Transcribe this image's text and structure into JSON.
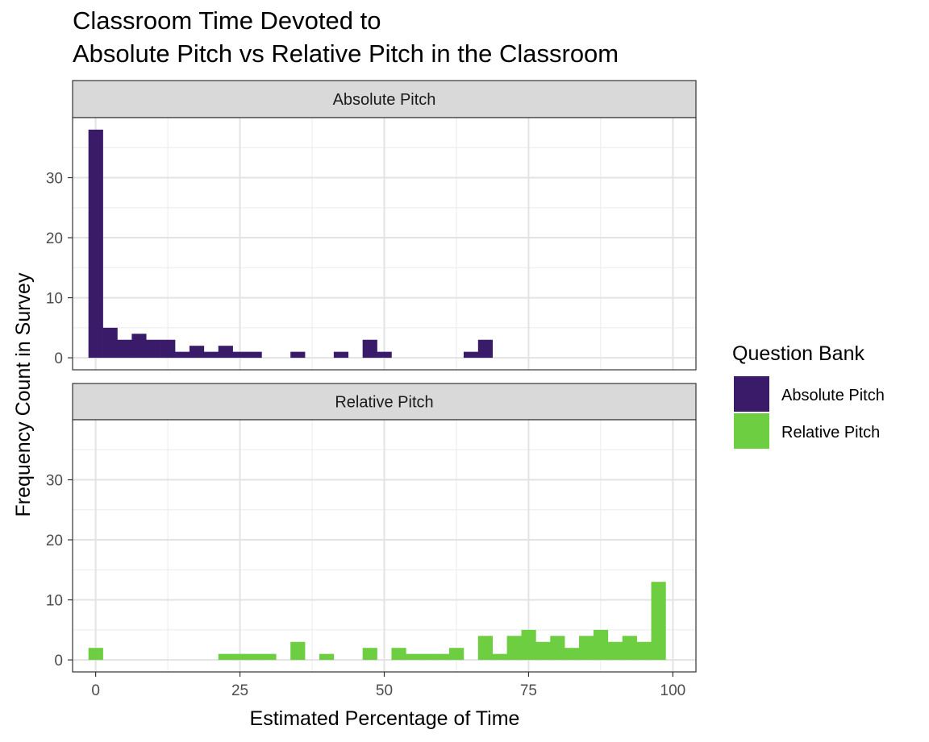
{
  "chart_data": {
    "type": "bar",
    "title_line1": "Classroom Time Devoted to",
    "title_line2": "Absolute Pitch vs Relative Pitch in the Classroom",
    "xlabel": "Estimated Percentage of Time",
    "ylabel": "Frequency Count in Survey",
    "xlim": [
      -4,
      104
    ],
    "ylim": [
      -2,
      40
    ],
    "x_ticks": [
      0,
      25,
      50,
      75,
      100
    ],
    "y_ticks": [
      0,
      10,
      20,
      30
    ],
    "grid": true,
    "bin_width": 2.5,
    "legend": {
      "title": "Question Bank",
      "placement": "right",
      "items": [
        {
          "label": "Absolute Pitch",
          "color": "#3a1b6a"
        },
        {
          "label": "Relative Pitch",
          "color": "#6cce40"
        }
      ]
    },
    "facets": [
      {
        "label": "Absolute Pitch",
        "color": "#3a1b6a",
        "x": [
          0,
          2.5,
          5,
          7.5,
          10,
          12.5,
          15,
          17.5,
          20,
          22.5,
          25,
          27.5,
          30,
          32.5,
          35,
          37.5,
          40,
          42.5,
          45,
          47.5,
          50,
          52.5,
          55,
          57.5,
          60,
          62.5,
          65,
          67.5,
          70
        ],
        "values": [
          38,
          5,
          3,
          4,
          3,
          3,
          1,
          2,
          1,
          2,
          1,
          1,
          0,
          0,
          1,
          0,
          0,
          1,
          0,
          3,
          1,
          0,
          0,
          0,
          0,
          0,
          1,
          3,
          0
        ]
      },
      {
        "label": "Relative Pitch",
        "color": "#6cce40",
        "x": [
          0,
          2.5,
          5,
          7.5,
          10,
          12.5,
          15,
          17.5,
          20,
          22.5,
          25,
          27.5,
          30,
          32.5,
          35,
          37.5,
          40,
          42.5,
          45,
          47.5,
          50,
          52.5,
          55,
          57.5,
          60,
          62.5,
          65,
          67.5,
          70,
          72.5,
          75,
          77.5,
          80,
          82.5,
          85,
          87.5,
          90,
          92.5,
          95,
          97.5,
          100
        ],
        "values": [
          2,
          0,
          0,
          0,
          0,
          0,
          0,
          0,
          0,
          1,
          1,
          1,
          1,
          0,
          3,
          0,
          1,
          0,
          0,
          2,
          0,
          2,
          1,
          1,
          1,
          2,
          0,
          4,
          1,
          4,
          5,
          3,
          4,
          2,
          4,
          5,
          3,
          4,
          3,
          13,
          0
        ]
      }
    ]
  }
}
